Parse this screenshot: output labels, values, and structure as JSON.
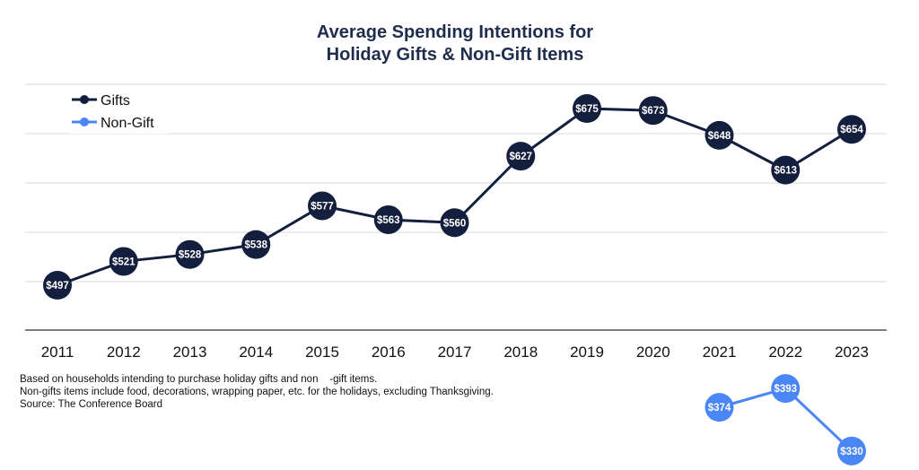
{
  "chart_data": {
    "type": "line",
    "title_lines": [
      "Average Spending Intentions for",
      "Holiday Gifts & Non-Gift Items"
    ],
    "categories": [
      "2011",
      "2012",
      "2013",
      "2014",
      "2015",
      "2016",
      "2017",
      "2018",
      "2019",
      "2020",
      "2021",
      "2022",
      "2023"
    ],
    "series": [
      {
        "name": "Gifts",
        "color": "#141f3e",
        "values": [
          497,
          521,
          528,
          538,
          577,
          563,
          560,
          627,
          675,
          673,
          648,
          613,
          654
        ],
        "labels": [
          "$497",
          "$521",
          "$528",
          "$538",
          "$577",
          "$563",
          "$560",
          "$627",
          "$675",
          "$673",
          "$648",
          "$613",
          "$654"
        ]
      },
      {
        "name": "Non-Gift",
        "color": "#4a86f5",
        "values": [
          null,
          null,
          null,
          null,
          null,
          null,
          null,
          null,
          null,
          null,
          374,
          393,
          330
        ],
        "labels": [
          null,
          null,
          null,
          null,
          null,
          null,
          null,
          null,
          null,
          null,
          "$374",
          "$393",
          "$330"
        ]
      }
    ],
    "grid": true,
    "legend_position": "top-left"
  },
  "footnotes": [
    "Based on households intending to purchase holiday gifts and non    -gift items.",
    "Non-gifts items include food, decorations, wrapping paper, etc. for the holidays, excluding Thanksgiving.",
    "Source: The Conference Board"
  ]
}
